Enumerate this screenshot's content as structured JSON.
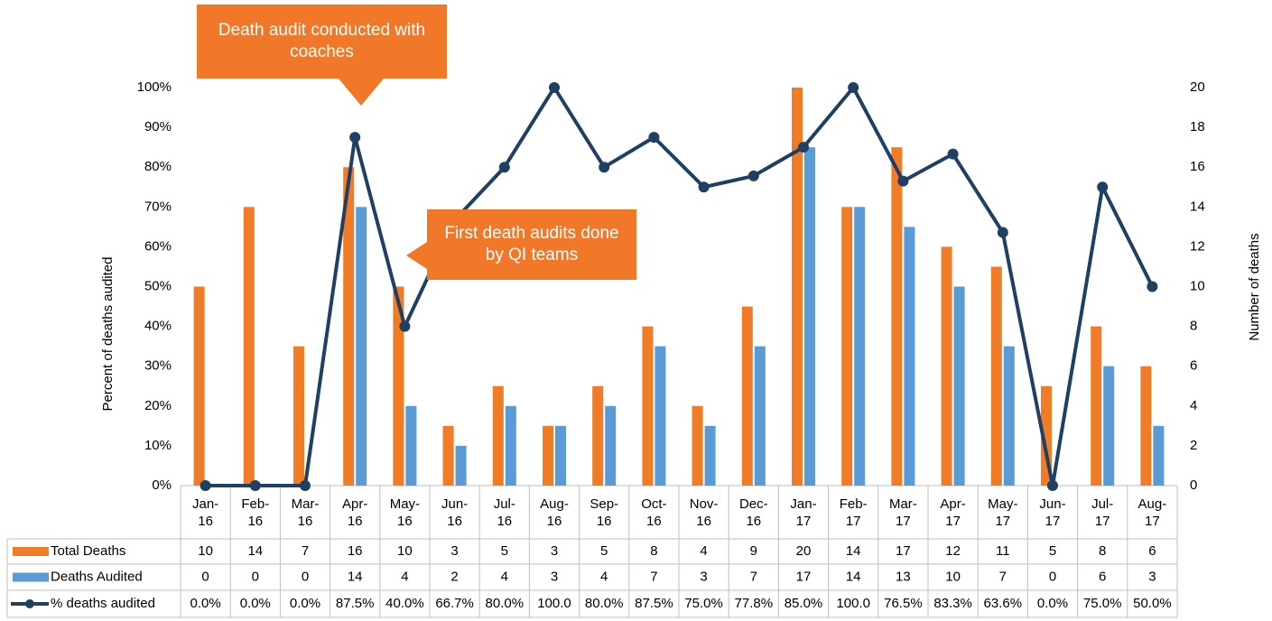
{
  "chart_data": {
    "type": "bar",
    "categories": [
      "Jan-16",
      "Feb-16",
      "Mar-16",
      "Apr-16",
      "May-16",
      "Jun-16",
      "Jul-16",
      "Aug-16",
      "Sep-16",
      "Oct-16",
      "Nov-16",
      "Dec-16",
      "Jan-17",
      "Feb-17",
      "Mar-17",
      "Apr-17",
      "May-17",
      "Jun-17",
      "Jul-17",
      "Aug-17"
    ],
    "series": [
      {
        "name": "Total Deaths",
        "type": "bar",
        "axis": "y2",
        "color": "#f07c28",
        "values": [
          10,
          14,
          7,
          16,
          10,
          3,
          5,
          3,
          5,
          8,
          4,
          9,
          20,
          14,
          17,
          12,
          11,
          5,
          8,
          6
        ]
      },
      {
        "name": "Deaths Audited",
        "type": "bar",
        "axis": "y2",
        "color": "#5b9bd5",
        "values": [
          0,
          0,
          0,
          14,
          4,
          2,
          4,
          3,
          4,
          7,
          3,
          7,
          17,
          14,
          13,
          10,
          7,
          0,
          6,
          3
        ]
      },
      {
        "name": "% deaths audited",
        "type": "line",
        "axis": "y",
        "color": "#1f3f63",
        "values": [
          0,
          0,
          0,
          87.5,
          40,
          66.7,
          80,
          100,
          80,
          87.5,
          75,
          77.8,
          85,
          100,
          76.5,
          83.3,
          63.6,
          0,
          75,
          50
        ],
        "value_labels": [
          "0.0%",
          "0.0%",
          "0.0%",
          "87.5%",
          "40.0%",
          "66.7%",
          "80.0%",
          "100.0",
          "80.0%",
          "87.5%",
          "75.0%",
          "77.8%",
          "85.0%",
          "100.0",
          "76.5%",
          "83.3%",
          "63.6%",
          "0.0%",
          "75.0%",
          "50.0%"
        ]
      }
    ],
    "y_label": "Percent of deaths audited",
    "y2_label": "Number of deaths",
    "ylim": [
      0,
      100
    ],
    "yticks": [
      {
        "value": 0,
        "label": "0%"
      },
      {
        "value": 10,
        "label": "10%"
      },
      {
        "value": 20,
        "label": "20%"
      },
      {
        "value": 30,
        "label": "30%"
      },
      {
        "value": 40,
        "label": "40%"
      },
      {
        "value": 50,
        "label": "50%"
      },
      {
        "value": 60,
        "label": "60%"
      },
      {
        "value": 70,
        "label": "70%"
      },
      {
        "value": 80,
        "label": "80%"
      },
      {
        "value": 90,
        "label": "90%"
      },
      {
        "value": 100,
        "label": "100%"
      }
    ],
    "y2lim": [
      0,
      20
    ],
    "y2ticks": [
      0,
      2,
      4,
      6,
      8,
      10,
      12,
      14,
      16,
      18,
      20
    ],
    "annotations": [
      "Death audit conducted with coaches",
      "First death audits done by QI teams"
    ],
    "grid": false
  }
}
